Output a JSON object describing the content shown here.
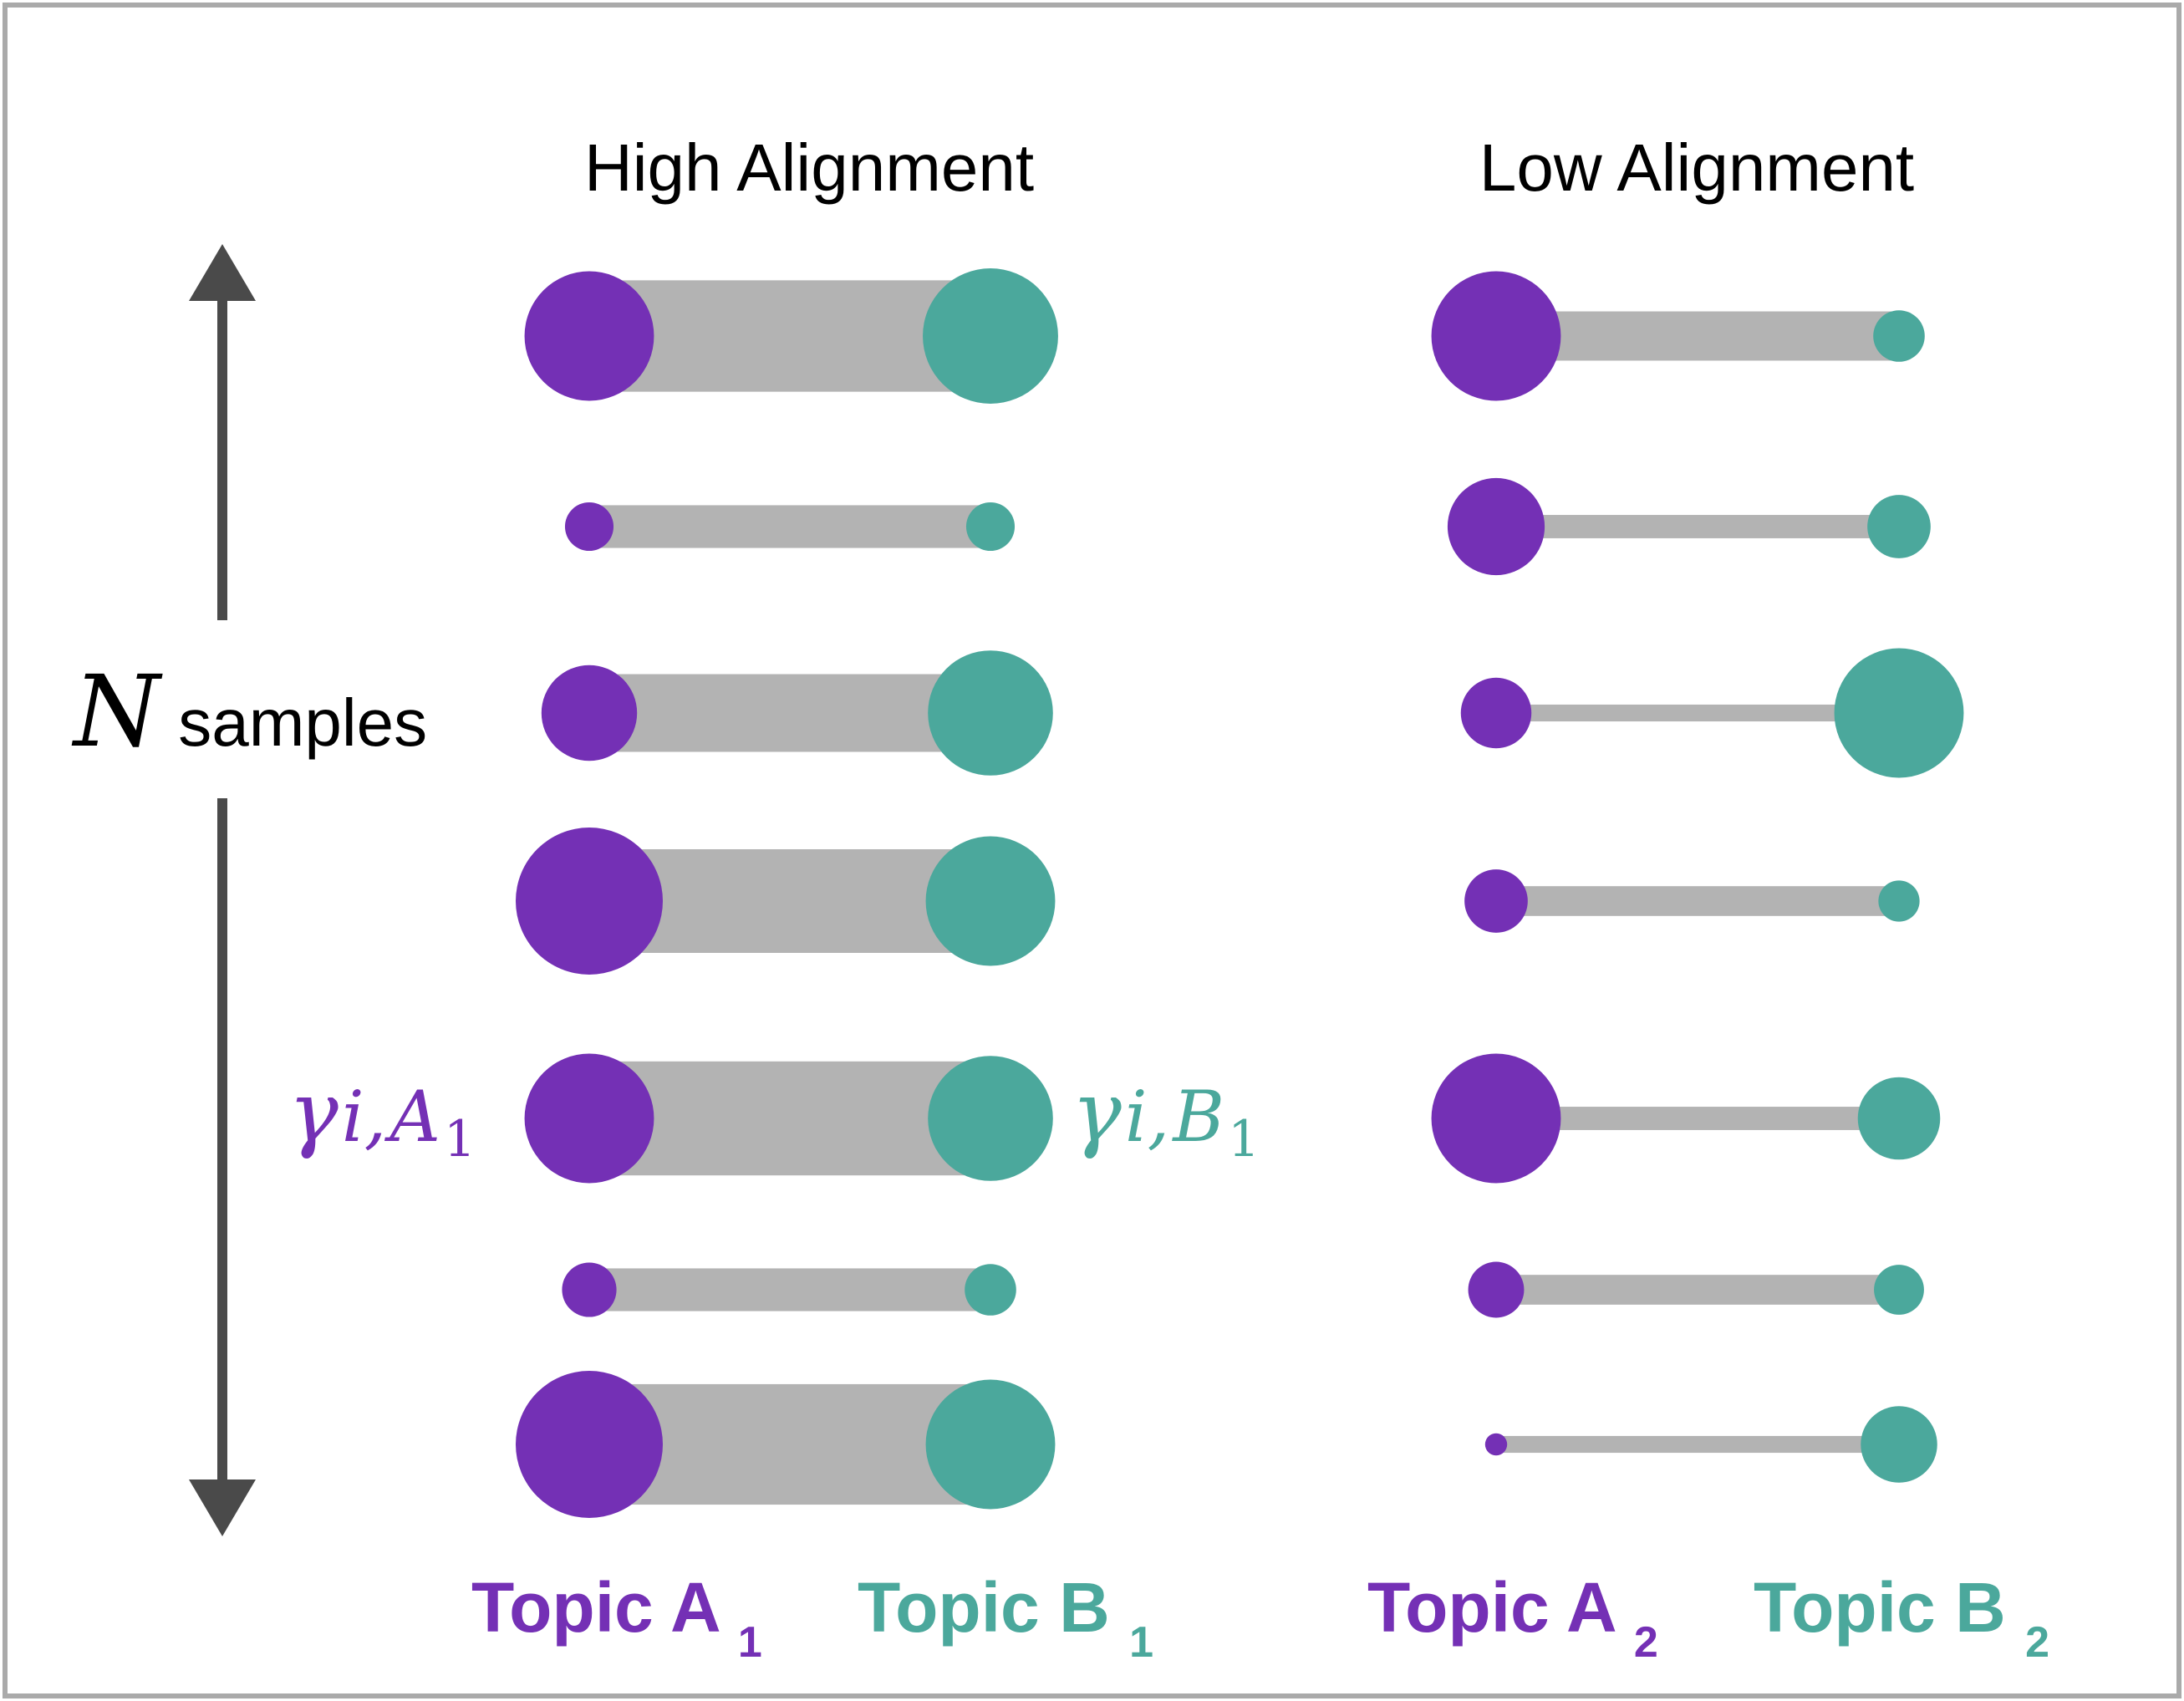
{
  "panels": [
    {
      "title": "High Alignment",
      "topic_a": {
        "label": "Topic A",
        "sub": "1"
      },
      "topic_b": {
        "label": "Topic B",
        "sub": "1"
      },
      "rows": [
        {
          "a": 0.88,
          "b": 0.92,
          "bar": 0.86
        },
        {
          "a": 0.33,
          "b": 0.33,
          "bar": 0.33
        },
        {
          "a": 0.65,
          "b": 0.85,
          "bar": 0.6
        },
        {
          "a": 1.0,
          "b": 0.88,
          "bar": 0.8
        },
        {
          "a": 0.88,
          "b": 0.85,
          "bar": 0.88
        },
        {
          "a": 0.37,
          "b": 0.35,
          "bar": 0.33
        },
        {
          "a": 1.0,
          "b": 0.88,
          "bar": 0.93
        }
      ]
    },
    {
      "title": "Low Alignment",
      "topic_a": {
        "label": "Topic A",
        "sub": "2"
      },
      "topic_b": {
        "label": "Topic B",
        "sub": "2"
      },
      "rows": [
        {
          "a": 0.88,
          "b": 0.35,
          "bar": 0.38
        },
        {
          "a": 0.66,
          "b": 0.43,
          "bar": 0.18
        },
        {
          "a": 0.48,
          "b": 0.88,
          "bar": 0.13
        },
        {
          "a": 0.43,
          "b": 0.28,
          "bar": 0.23
        },
        {
          "a": 0.88,
          "b": 0.56,
          "bar": 0.18
        },
        {
          "a": 0.38,
          "b": 0.34,
          "bar": 0.23
        },
        {
          "a": 0.15,
          "b": 0.52,
          "bar": 0.13
        }
      ]
    }
  ],
  "axis": {
    "symbol": "N",
    "label": "samples"
  },
  "annotations": {
    "gamma_a": {
      "greek": "γ",
      "sub": "i,",
      "topic": "A",
      "topic_sub": "1"
    },
    "gamma_b": {
      "greek": "γ",
      "sub": "i,",
      "topic": "B",
      "topic_sub": "1"
    }
  },
  "colors": {
    "topic_a": "#7430b5",
    "topic_b": "#4ba89c",
    "bar": "#b3b3b3",
    "arrow": "#4a4a4a",
    "frame": "#aaaaaa"
  }
}
